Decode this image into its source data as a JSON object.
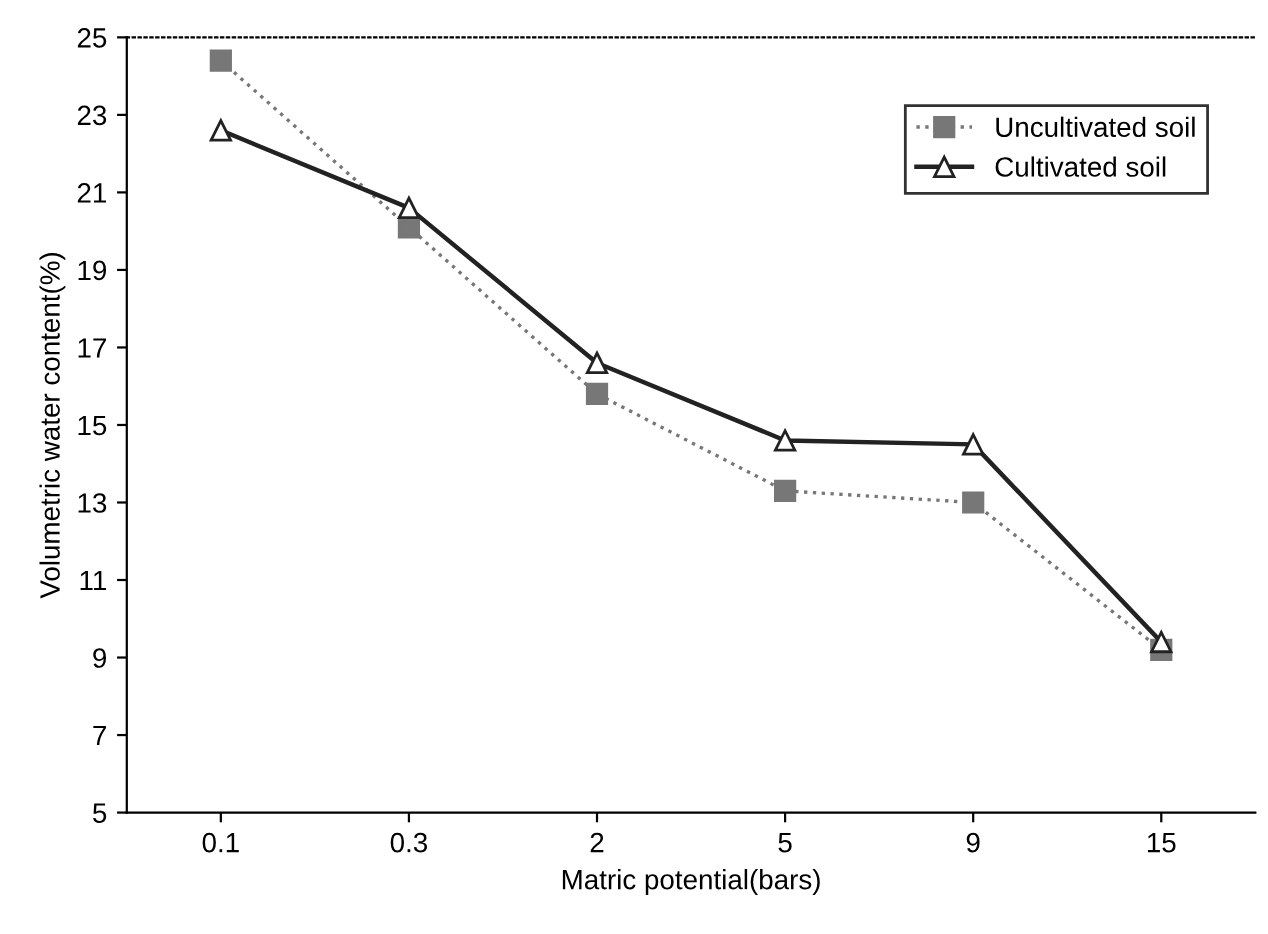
{
  "chart_data": {
    "type": "line",
    "xlabel": "Matric potential(bars)",
    "ylabel": "Volumetric water content(%)",
    "categories": [
      "0.1",
      "0.3",
      "2",
      "5",
      "9",
      "15"
    ],
    "series": [
      {
        "name": "Uncultivated soil",
        "color": "#777777",
        "marker": "square",
        "line_style": "dotted",
        "values": [
          24.4,
          20.1,
          15.8,
          13.3,
          13.0,
          9.2
        ]
      },
      {
        "name": "Cultivated soil",
        "color": "#222222",
        "marker": "triangle",
        "line_style": "solid",
        "values": [
          22.6,
          20.6,
          16.6,
          14.6,
          14.5,
          9.4
        ]
      }
    ],
    "ylim": [
      5,
      25
    ],
    "yticks": [
      5,
      7,
      9,
      11,
      13,
      15,
      17,
      19,
      21,
      23,
      25
    ],
    "grid": false,
    "legend": "top right"
  }
}
